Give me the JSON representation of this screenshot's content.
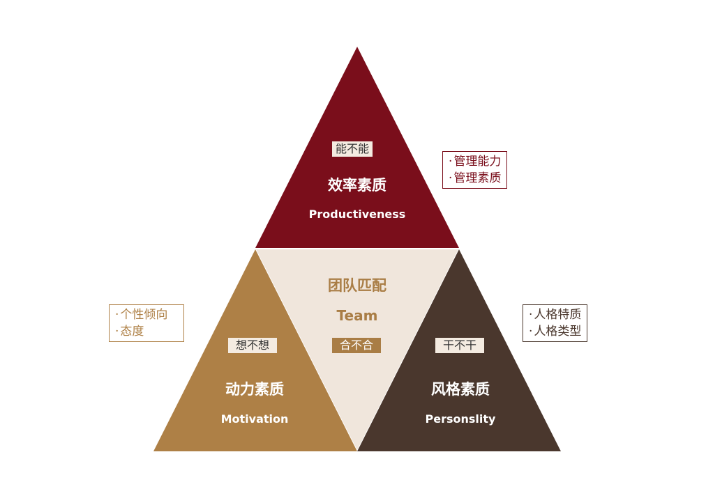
{
  "colors": {
    "top": "#7a0e1b",
    "left": "#ae8046",
    "center": "#f0e6dc",
    "right": "#4a372d",
    "center_text": "#a97d45"
  },
  "top": {
    "tag": "能不能",
    "title": "效率素质",
    "subtitle": "Productiveness",
    "notes": [
      "管理能力",
      "管理素质"
    ]
  },
  "left": {
    "tag": "想不想",
    "title": "动力素质",
    "subtitle": "Motivation",
    "notes": [
      "个性倾向",
      "态度"
    ]
  },
  "center": {
    "title": "团队匹配",
    "subtitle": "Team",
    "tag": "合不合"
  },
  "right": {
    "tag": "干不干",
    "title": "风格素质",
    "subtitle": "Personslity",
    "notes": [
      "人格特质",
      "人格类型"
    ]
  }
}
